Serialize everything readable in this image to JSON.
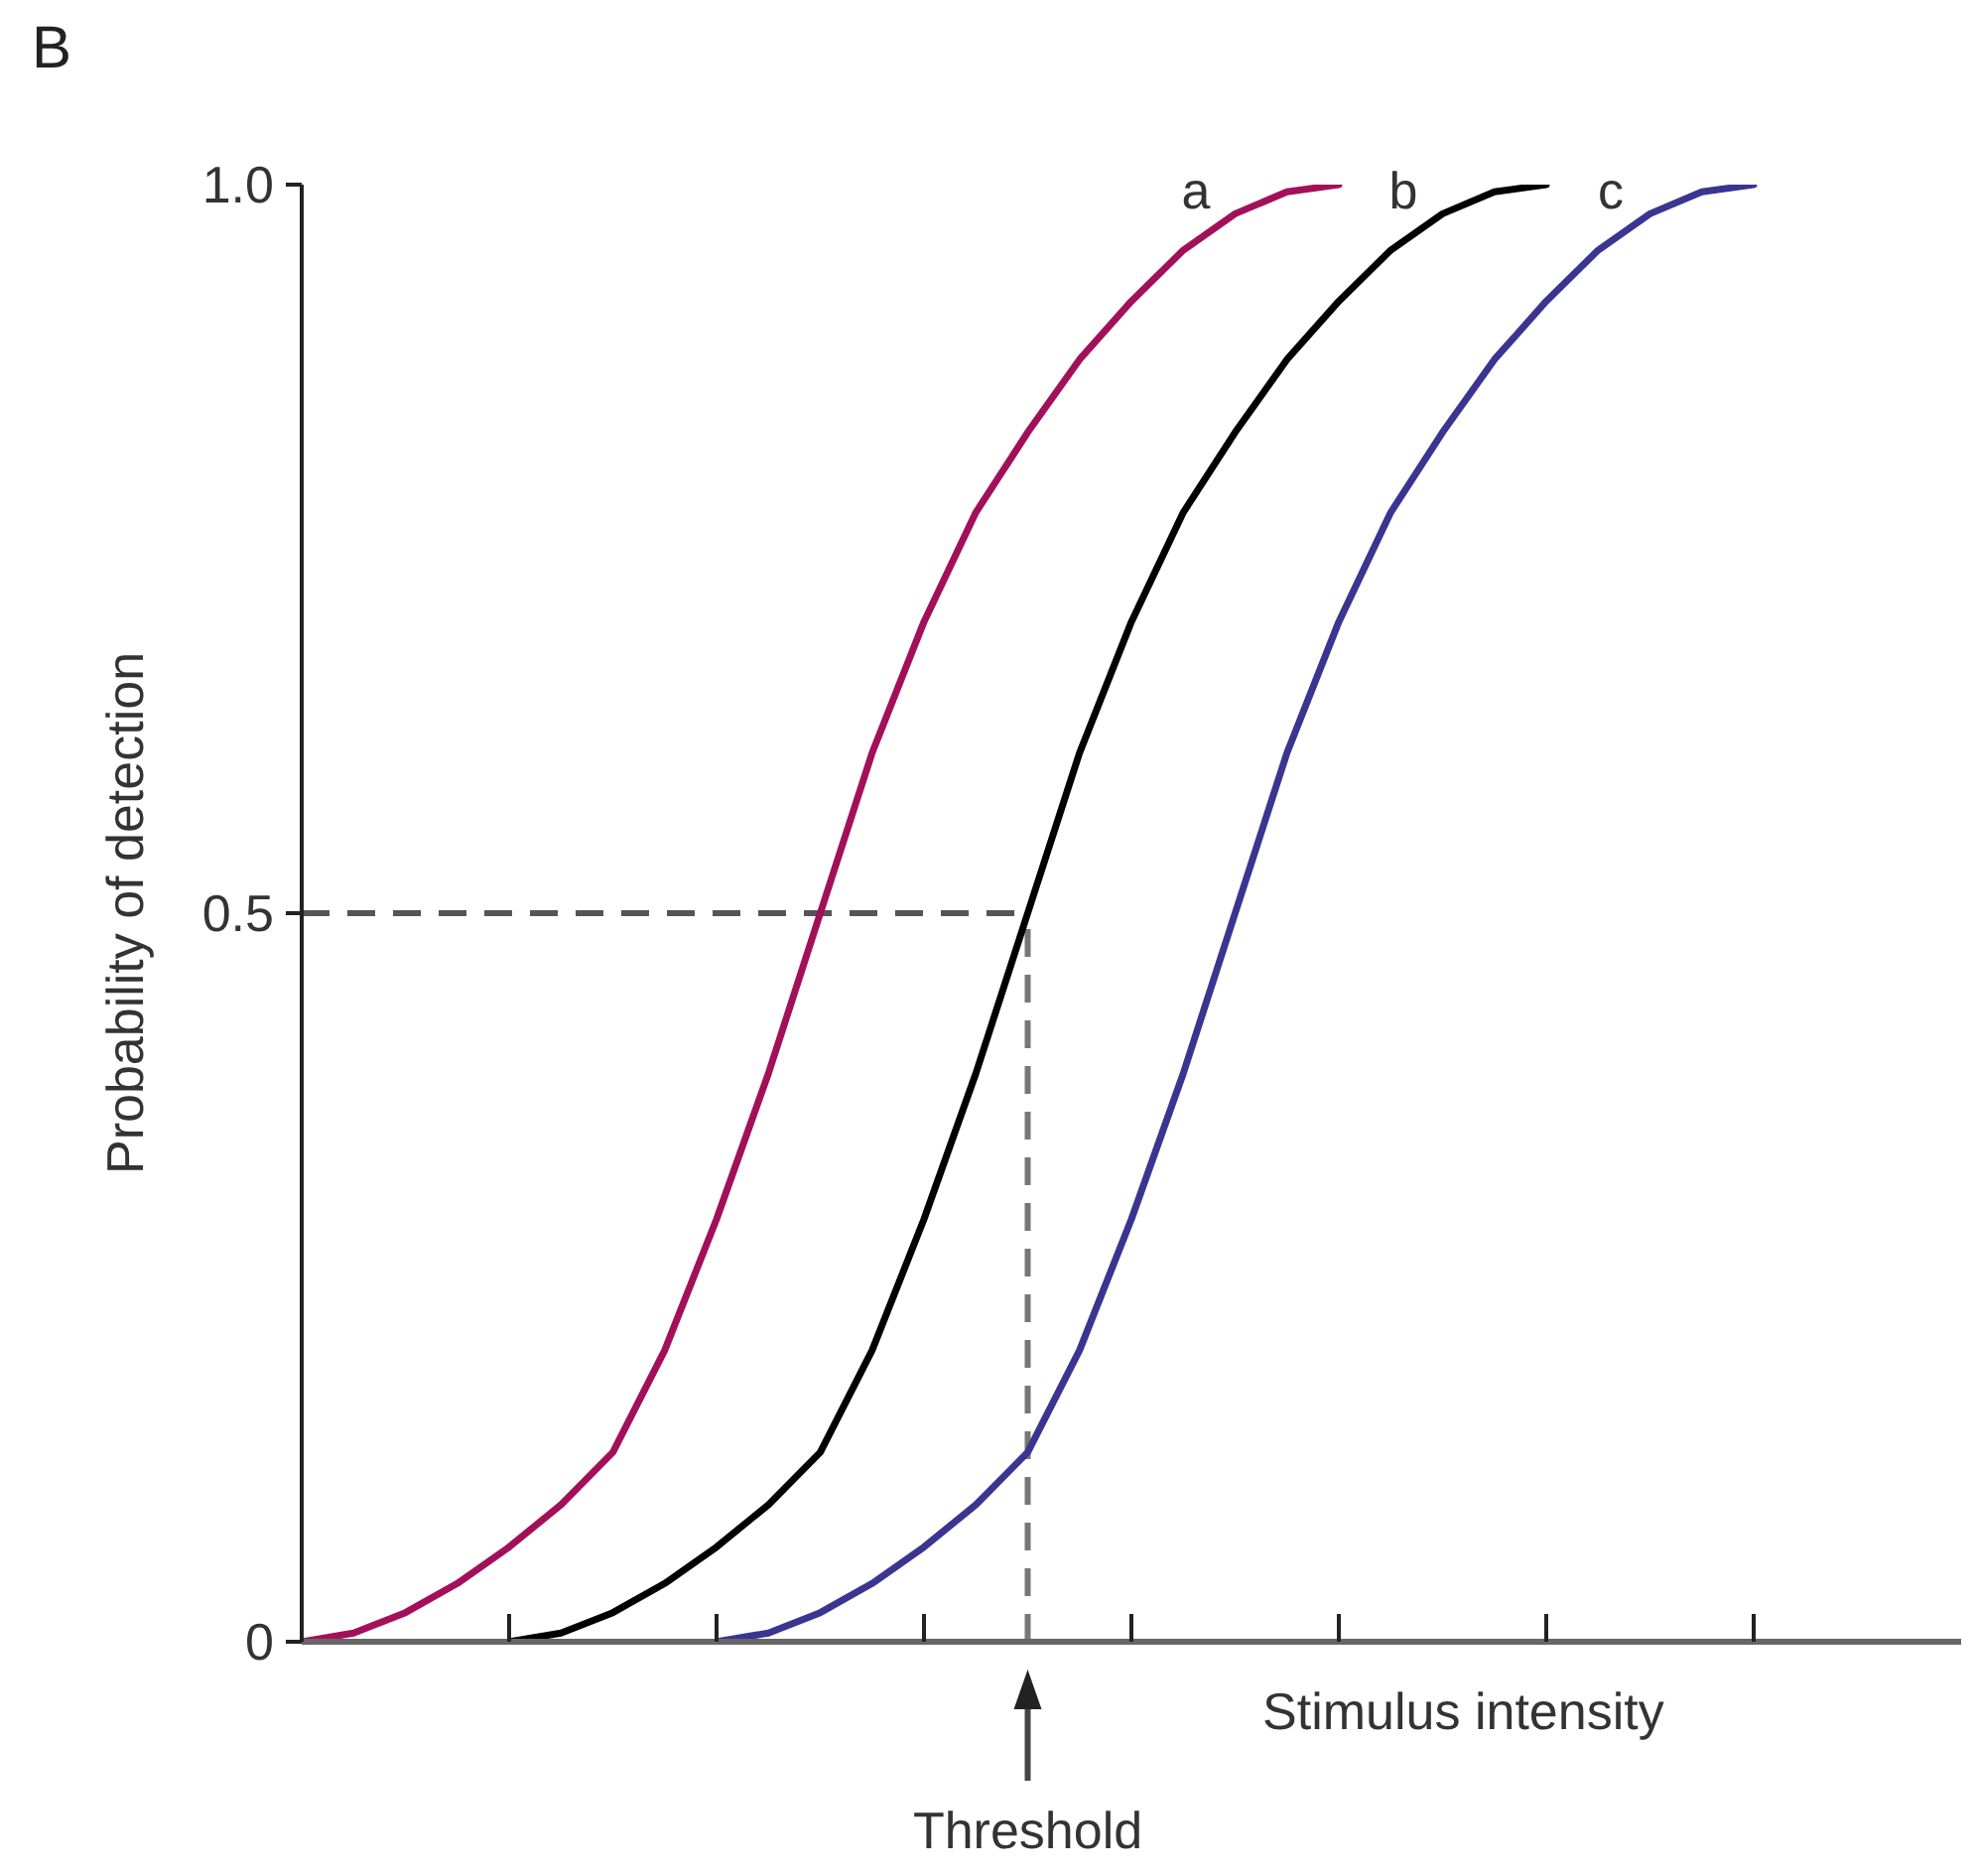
{
  "chart_data": {
    "type": "line",
    "title": "B",
    "xlabel": "Stimulus intensity",
    "ylabel": "Probability of detection",
    "categories": [
      null,
      null,
      null,
      null,
      null,
      null,
      null,
      null,
      null,
      null,
      null,
      null,
      null,
      null,
      null,
      null,
      null,
      null,
      null,
      null,
      null,
      null,
      null,
      null,
      null,
      null,
      null,
      null,
      null,
      null,
      null,
      null,
      null
    ],
    "ylim": [
      0,
      1
    ],
    "yticks": [
      0,
      0.5,
      {
        "value": 1,
        "label": "1.0"
      }
    ],
    "series": [
      {
        "name": "a",
        "color": "#a3105a",
        "values": [
          0,
          0.006,
          0.02,
          0.04,
          0.065,
          0.094,
          0.13,
          0.2,
          0.29,
          0.39,
          0.5,
          0.61,
          0.7,
          0.775,
          0.83,
          0.88,
          0.92,
          0.955,
          0.98,
          0.995,
          1,
          null,
          null,
          null,
          null,
          null,
          null,
          null,
          null,
          null,
          null,
          null,
          null
        ]
      },
      {
        "name": "b",
        "color": "#000000",
        "values": [
          null,
          null,
          null,
          null,
          0,
          0.006,
          0.02,
          0.04,
          0.065,
          0.094,
          0.13,
          0.2,
          0.29,
          0.39,
          0.5,
          0.61,
          0.7,
          0.775,
          0.83,
          0.88,
          0.92,
          0.955,
          0.98,
          0.995,
          1,
          null,
          null,
          null,
          null,
          null,
          null,
          null,
          null
        ]
      },
      {
        "name": "c",
        "color": "#3a3590",
        "values": [
          null,
          null,
          null,
          null,
          null,
          null,
          null,
          null,
          0,
          0.006,
          0.02,
          0.04,
          0.065,
          0.094,
          0.13,
          0.2,
          0.29,
          0.39,
          0.5,
          0.61,
          0.7,
          0.775,
          0.83,
          0.88,
          0.92,
          0.955,
          0.98,
          0.995,
          1,
          null,
          null,
          null,
          null
        ]
      }
    ],
    "ref_lines": [
      {
        "axis": "y",
        "value": 0.5,
        "color": "#555555",
        "line_style": "dashed"
      }
    ],
    "annotations": [
      "Threshold"
    ]
  }
}
